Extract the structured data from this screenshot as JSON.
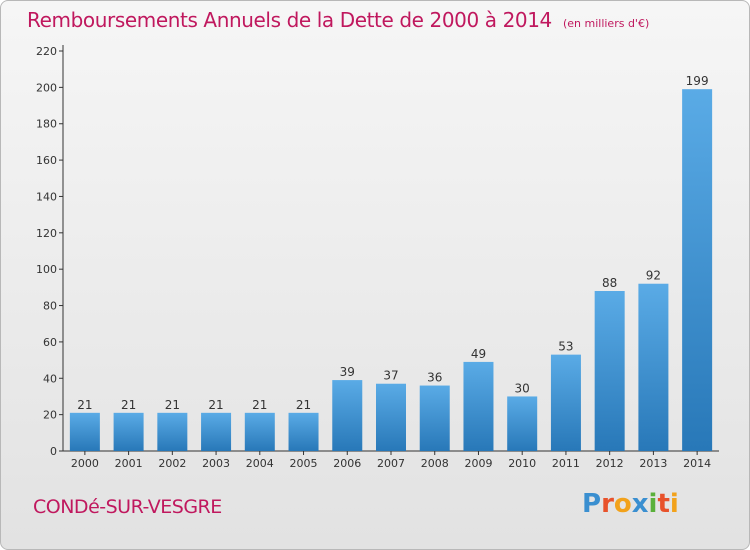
{
  "title": "Remboursements Annuels de la Dette de 2000 à 2014",
  "unit": "(en milliers d'€)",
  "commune": "CONDé-SUR-VESGRE",
  "brand": {
    "text": "Proxiti",
    "letter_colors": [
      "#3a8fd0",
      "#e8522b",
      "#f2a21b",
      "#3a8fd0",
      "#5ab03a",
      "#e8522b",
      "#f2a21b"
    ]
  },
  "colors": {
    "title": "#c0185e",
    "bar_light": "#5aabe6",
    "bar_dark": "#2878b8",
    "axis": "#333333"
  },
  "chart_data": {
    "type": "bar",
    "categories": [
      "2000",
      "2001",
      "2002",
      "2003",
      "2004",
      "2005",
      "2006",
      "2007",
      "2008",
      "2009",
      "2010",
      "2011",
      "2012",
      "2013",
      "2014"
    ],
    "values": [
      21,
      21,
      21,
      21,
      21,
      21,
      39,
      37,
      36,
      49,
      30,
      53,
      88,
      92,
      199
    ],
    "title": "Remboursements Annuels de la Dette de 2000 à 2014",
    "xlabel": "",
    "ylabel": "",
    "ylim": [
      0,
      220
    ],
    "yticks": [
      0,
      20,
      40,
      60,
      80,
      100,
      120,
      140,
      160,
      180,
      200,
      220
    ],
    "grid": false,
    "data_labels": true
  }
}
